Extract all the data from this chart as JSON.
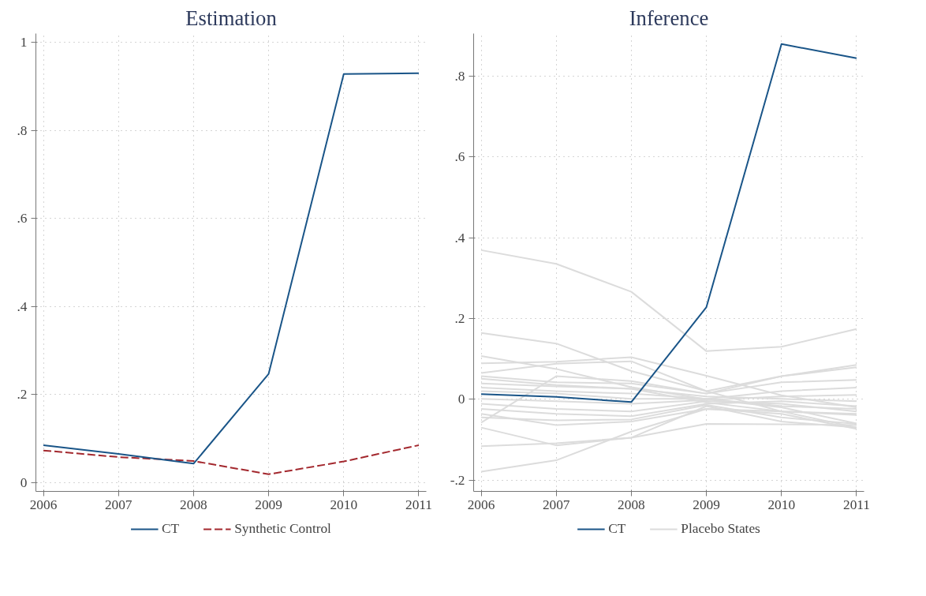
{
  "chart_data": [
    {
      "type": "line",
      "title": "Estimation",
      "x": [
        2006,
        2007,
        2008,
        2009,
        2010,
        2011
      ],
      "xlim": [
        2005.9,
        2011.1
      ],
      "xticks": [
        2006,
        2007,
        2008,
        2009,
        2010,
        2011
      ],
      "ylim": [
        -0.02,
        1.02
      ],
      "yticks": [
        0,
        {
          "value": 0.2,
          "label": ".2"
        },
        {
          "value": 0.4,
          "label": ".4"
        },
        {
          "value": 0.6,
          "label": ".6"
        },
        {
          "value": 0.8,
          "label": ".8"
        },
        1
      ],
      "grid": true,
      "legend": "bottom",
      "series": [
        {
          "name": "CT",
          "color": "#1a5588",
          "line_style": "solid",
          "values": [
            0.085,
            0.065,
            0.043,
            0.247,
            0.928,
            0.93
          ]
        },
        {
          "name": "Synthetic Control",
          "color": "#a3282e",
          "line_style": "dashed",
          "values": [
            0.073,
            0.058,
            0.049,
            0.019,
            0.048,
            0.085
          ]
        }
      ]
    },
    {
      "type": "line",
      "title": "Inference",
      "x": [
        2006,
        2007,
        2008,
        2009,
        2010,
        2011
      ],
      "xlim": [
        2005.9,
        2011.1
      ],
      "xticks": [
        2006,
        2007,
        2008,
        2009,
        2010,
        2011
      ],
      "ylim": [
        -0.228,
        0.905
      ],
      "yticks": [
        {
          "value": -0.2,
          "label": "-.2"
        },
        0,
        {
          "value": 0.2,
          "label": ".2"
        },
        {
          "value": 0.4,
          "label": ".4"
        },
        {
          "value": 0.6,
          "label": ".6"
        },
        {
          "value": 0.8,
          "label": ".8"
        }
      ],
      "grid": true,
      "legend": "bottom",
      "series": [
        {
          "name": "CT",
          "color": "#1a5588",
          "line_style": "solid",
          "values": [
            0.013,
            0.006,
            -0.007,
            0.228,
            0.879,
            0.844
          ]
        },
        {
          "name": "Placebo States",
          "color": "#dcdcdc",
          "line_style": "solid",
          "values": [
            0.369,
            0.335,
            0.266,
            0.119,
            0.13,
            0.174
          ]
        },
        {
          "color": "#dcdcdc",
          "line_style": "solid",
          "values": [
            0.164,
            0.138,
            0.07,
            0.02,
            -0.03,
            -0.07
          ]
        },
        {
          "color": "#dcdcdc",
          "line_style": "solid",
          "values": [
            0.107,
            0.075,
            0.03,
            0.0,
            -0.02,
            -0.06
          ]
        },
        {
          "color": "#dcdcdc",
          "line_style": "solid",
          "values": [
            0.089,
            0.093,
            0.104,
            0.058,
            0.01,
            -0.02
          ]
        },
        {
          "color": "#dcdcdc",
          "line_style": "solid",
          "values": [
            0.065,
            0.088,
            0.094,
            0.02,
            0.057,
            0.085
          ]
        },
        {
          "color": "#dcdcdc",
          "line_style": "solid",
          "values": [
            -0.058,
            0.057,
            0.045,
            0.014,
            0.057,
            0.079
          ]
        },
        {
          "color": "#dcdcdc",
          "line_style": "solid",
          "values": [
            -0.116,
            -0.109,
            -0.095,
            -0.061,
            -0.062,
            -0.064
          ]
        },
        {
          "color": "#dcdcdc",
          "line_style": "solid",
          "values": [
            -0.179,
            -0.151,
            -0.08,
            -0.024,
            -0.036,
            -0.073
          ]
        },
        {
          "color": "#dcdcdc",
          "line_style": "solid",
          "values": [
            -0.07,
            -0.114,
            -0.095,
            -0.017,
            -0.055,
            -0.07
          ]
        },
        {
          "color": "#dcdcdc",
          "line_style": "solid",
          "values": [
            -0.036,
            -0.064,
            -0.055,
            -0.024,
            -0.03,
            -0.039
          ]
        },
        {
          "color": "#dcdcdc",
          "line_style": "solid",
          "values": [
            0.057,
            0.042,
            0.039,
            0.014,
            0.042,
            0.048
          ]
        },
        {
          "color": "#dcdcdc",
          "line_style": "solid",
          "values": [
            0.02,
            0.014,
            0.001,
            0.001,
            0.02,
            0.029
          ]
        },
        {
          "color": "#dcdcdc",
          "line_style": "solid",
          "values": [
            -0.011,
            -0.024,
            -0.03,
            -0.005,
            -0.011,
            -0.03
          ]
        },
        {
          "color": "#dcdcdc",
          "line_style": "solid",
          "values": [
            -0.024,
            -0.036,
            -0.042,
            -0.011,
            -0.005,
            -0.017
          ]
        },
        {
          "color": "#dcdcdc",
          "line_style": "solid",
          "values": [
            0.051,
            0.035,
            0.026,
            -0.008,
            -0.03,
            -0.036
          ]
        },
        {
          "color": "#dcdcdc",
          "line_style": "solid",
          "values": [
            0.039,
            0.032,
            0.026,
            0.007,
            0.001,
            -0.005
          ]
        },
        {
          "color": "#dcdcdc",
          "line_style": "solid",
          "values": [
            0.001,
            -0.005,
            -0.011,
            -0.002,
            0.007,
            0.011
          ]
        },
        {
          "color": "#dcdcdc",
          "line_style": "solid",
          "values": [
            -0.045,
            -0.052,
            -0.05,
            -0.014,
            -0.045,
            -0.061
          ]
        },
        {
          "color": "#dcdcdc",
          "line_style": "solid",
          "values": [
            0.029,
            0.02,
            0.014,
            0.001,
            -0.017,
            -0.024
          ]
        }
      ]
    }
  ]
}
